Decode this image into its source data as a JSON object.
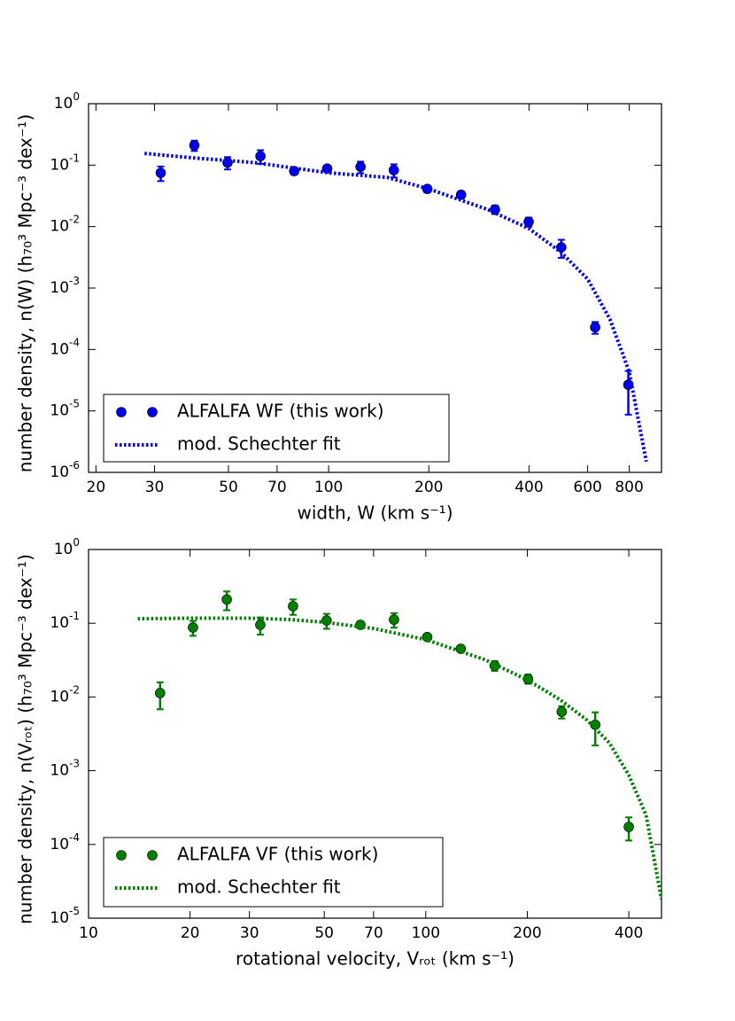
{
  "chart_data": [
    {
      "type": "scatter",
      "xlabel": "width, W    (km s⁻¹)",
      "ylabel": "number density, n(W)     (h₇₀³ Mpc⁻³ dex⁻¹)",
      "log_x": true,
      "log_y": true,
      "legend": "lower left",
      "xlim": [
        19,
        1000
      ],
      "ylim": [
        1e-06,
        1
      ],
      "xticks": [
        20,
        30,
        50,
        70,
        100,
        200,
        400,
        600,
        800
      ],
      "yticks": [
        {
          "value": 1,
          "label": "10",
          "exponent": "0"
        },
        {
          "value": 0.1,
          "label": "10",
          "exponent": "-1"
        },
        {
          "value": 0.01,
          "label": "10",
          "exponent": "-2"
        },
        {
          "value": 0.001,
          "label": "10",
          "exponent": "-3"
        },
        {
          "value": 0.0001,
          "label": "10",
          "exponent": "-4"
        },
        {
          "value": 1e-05,
          "label": "10",
          "exponent": "-5"
        },
        {
          "value": 1e-06,
          "label": "10",
          "exponent": "-6"
        }
      ],
      "series": [
        {
          "name": "ALFALFA WF (this work)",
          "color": "#0000ee",
          "style": "points",
          "x": [
            31.3,
            39.5,
            49.7,
            62.4,
            78.8,
            99,
            124.7,
            157,
            198,
            250,
            316,
            399,
            500,
            632,
            795
          ],
          "values": [
            0.075,
            0.21,
            0.11,
            0.14,
            0.08,
            0.088,
            0.094,
            0.083,
            0.041,
            0.033,
            0.019,
            0.012,
            0.0046,
            0.00023,
            2.67e-05
          ],
          "errors": [
            0.02,
            0.04,
            0.025,
            0.035,
            0.01,
            0.01,
            0.02,
            0.02,
            0.005,
            0.004,
            0.003,
            0.002,
            0.0015,
            5e-05,
            1.8e-05
          ]
        },
        {
          "name": "mod. Schechter fit",
          "color": "#0000ee",
          "style": "dotted",
          "x": [
            28,
            40,
            60,
            100,
            150,
            200,
            300,
            400,
            500,
            600,
            700,
            800,
            900
          ],
          "values": [
            0.155,
            0.13,
            0.11,
            0.075,
            0.063,
            0.041,
            0.019,
            0.0093,
            0.0038,
            0.0014,
            0.00031,
            4.3e-05,
            1.5e-06
          ]
        }
      ]
    },
    {
      "type": "scatter",
      "xlabel": "rotational velocity, Vᵣₒₜ    (km s⁻¹)",
      "ylabel": "number density, n(Vᵣₒₜ)     (h₇₀³ Mpc⁻³ dex⁻¹)",
      "log_x": true,
      "log_y": true,
      "legend": "lower left",
      "xlim": [
        10,
        500
      ],
      "ylim": [
        1e-05,
        1
      ],
      "xticks": [
        10,
        20,
        30,
        50,
        70,
        100,
        200,
        400
      ],
      "yticks": [
        {
          "value": 1,
          "label": "10",
          "exponent": "0"
        },
        {
          "value": 0.1,
          "label": "10",
          "exponent": "-1"
        },
        {
          "value": 0.01,
          "label": "10",
          "exponent": "-2"
        },
        {
          "value": 0.001,
          "label": "10",
          "exponent": "-3"
        },
        {
          "value": 0.0001,
          "label": "10",
          "exponent": "-4"
        },
        {
          "value": 1e-05,
          "label": "10",
          "exponent": "-5"
        }
      ],
      "series": [
        {
          "name": "ALFALFA VF (this work)",
          "color": "#007f00",
          "style": "points",
          "x": [
            16.3,
            20.4,
            25.7,
            32.3,
            40.4,
            50.8,
            64,
            80.5,
            101,
            127,
            160,
            201,
            253,
            318,
            400
          ],
          "values": [
            0.0113,
            0.0875,
            0.21,
            0.095,
            0.17,
            0.109,
            0.095,
            0.112,
            0.065,
            0.045,
            0.0266,
            0.0176,
            0.0063,
            0.0042,
            0.000173
          ],
          "errors": [
            0.0045,
            0.02,
            0.06,
            0.025,
            0.04,
            0.025,
            0.008,
            0.025,
            0.006,
            0.004,
            0.004,
            0.0025,
            0.0012,
            0.002,
            6e-05
          ]
        },
        {
          "name": "mod. Schechter fit",
          "color": "#007f00",
          "style": "dotted",
          "x": [
            14,
            20,
            30,
            40,
            50,
            70,
            100,
            150,
            200,
            250,
            300,
            350,
            400,
            450,
            500
          ],
          "values": [
            0.115,
            0.117,
            0.117,
            0.112,
            0.103,
            0.085,
            0.06,
            0.032,
            0.017,
            0.0092,
            0.0049,
            0.0024,
            0.00087,
            0.00025,
            1.8e-05
          ]
        }
      ]
    }
  ]
}
